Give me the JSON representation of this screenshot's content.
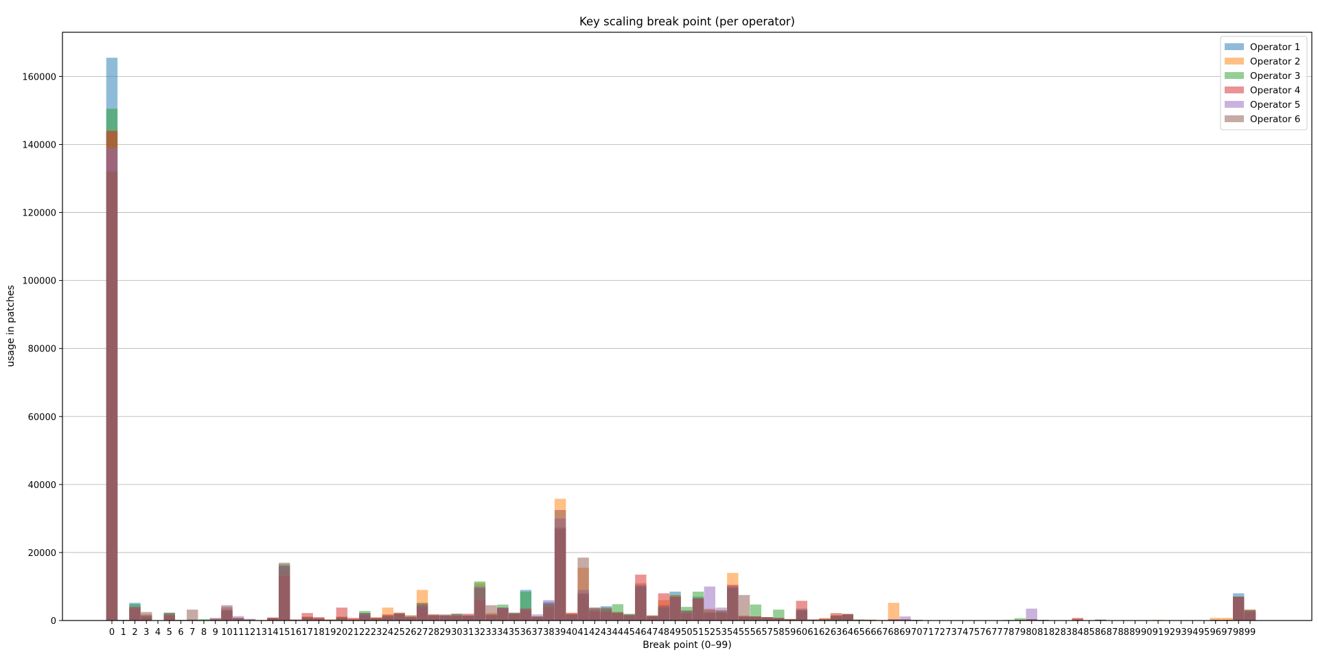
{
  "chart_data": {
    "type": "bar",
    "title": "Key scaling break point (per operator)",
    "xlabel": "Break point (0–99)",
    "ylabel": "usage in patches",
    "x": [
      0,
      1,
      2,
      3,
      4,
      5,
      6,
      7,
      8,
      9,
      10,
      11,
      12,
      13,
      14,
      15,
      16,
      17,
      18,
      19,
      20,
      21,
      22,
      23,
      24,
      25,
      26,
      27,
      28,
      29,
      30,
      31,
      32,
      33,
      34,
      35,
      36,
      37,
      38,
      39,
      40,
      41,
      42,
      43,
      44,
      45,
      46,
      47,
      48,
      49,
      50,
      51,
      52,
      53,
      54,
      55,
      56,
      57,
      58,
      59,
      60,
      61,
      62,
      63,
      64,
      65,
      66,
      67,
      68,
      69,
      70,
      71,
      72,
      73,
      74,
      75,
      76,
      77,
      78,
      79,
      80,
      81,
      82,
      83,
      84,
      85,
      86,
      87,
      88,
      89,
      90,
      91,
      92,
      93,
      94,
      95,
      96,
      97,
      98,
      99
    ],
    "ylim": [
      0,
      173000
    ],
    "yticks": [
      0,
      20000,
      40000,
      60000,
      80000,
      100000,
      120000,
      140000,
      160000
    ],
    "grid": "y",
    "legend_position": "top-right",
    "bar_opacity": 0.5,
    "series": [
      {
        "name": "Operator 1",
        "color": "#1f77b4",
        "values": [
          165500,
          200,
          5200,
          1500,
          100,
          2000,
          200,
          300,
          200,
          300,
          3000,
          600,
          300,
          100,
          600,
          16000,
          200,
          900,
          500,
          200,
          900,
          200,
          2200,
          500,
          1200,
          1800,
          1000,
          4500,
          1500,
          1500,
          1500,
          1500,
          10000,
          1500,
          3800,
          2000,
          9000,
          1200,
          5500,
          27500,
          1800,
          8000,
          3000,
          4200,
          2200,
          1600,
          10500,
          1200,
          4000,
          8500,
          2800,
          7000,
          2000,
          2500,
          10000,
          1200,
          1000,
          800,
          700,
          400,
          3000,
          300,
          300,
          1000,
          1500,
          200,
          200,
          100,
          200,
          300,
          200,
          100,
          100,
          100,
          100,
          100,
          100,
          100,
          100,
          200,
          400,
          200,
          100,
          100,
          300,
          100,
          200,
          100,
          100,
          100,
          100,
          100,
          100,
          100,
          100,
          100,
          200,
          200,
          8000,
          2800
        ]
      },
      {
        "name": "Operator 2",
        "color": "#ff7f0e",
        "values": [
          144000,
          100,
          3800,
          1800,
          100,
          1200,
          100,
          200,
          100,
          500,
          3500,
          800,
          200,
          200,
          800,
          15000,
          300,
          1200,
          800,
          300,
          1200,
          500,
          1500,
          1000,
          3800,
          2300,
          1500,
          9000,
          1800,
          1500,
          1200,
          1200,
          11000,
          2200,
          3500,
          2000,
          3500,
          1000,
          4500,
          35800,
          2300,
          15500,
          3500,
          3000,
          2500,
          1500,
          11000,
          1500,
          6000,
          7500,
          2500,
          6500,
          3500,
          3000,
          14000,
          1500,
          1200,
          1000,
          800,
          500,
          2500,
          200,
          800,
          1500,
          1800,
          300,
          300,
          200,
          5200,
          400,
          200,
          100,
          100,
          100,
          100,
          100,
          100,
          100,
          100,
          200,
          300,
          200,
          100,
          100,
          400,
          100,
          100,
          100,
          100,
          100,
          100,
          200,
          100,
          100,
          100,
          100,
          800,
          800,
          6000,
          3200
        ]
      },
      {
        "name": "Operator 3",
        "color": "#2ca02c",
        "values": [
          150500,
          200,
          4800,
          1200,
          100,
          2300,
          200,
          200,
          400,
          300,
          3000,
          500,
          300,
          100,
          700,
          16500,
          200,
          800,
          500,
          200,
          800,
          200,
          2800,
          600,
          1200,
          2000,
          1000,
          5000,
          1500,
          1500,
          2000,
          1400,
          11500,
          1500,
          4700,
          2300,
          8500,
          1200,
          5000,
          27000,
          1800,
          7500,
          3200,
          3500,
          4800,
          2000,
          10000,
          1300,
          3500,
          7500,
          4000,
          8500,
          2200,
          2500,
          10000,
          1200,
          4700,
          1000,
          3200,
          300,
          3000,
          200,
          400,
          1500,
          1800,
          300,
          200,
          100,
          300,
          200,
          200,
          100,
          100,
          100,
          100,
          100,
          100,
          100,
          200,
          700,
          400,
          200,
          100,
          100,
          200,
          100,
          300,
          100,
          100,
          100,
          100,
          100,
          100,
          100,
          100,
          100,
          200,
          200,
          7000,
          3000
        ]
      },
      {
        "name": "Operator 4",
        "color": "#d62728",
        "values": [
          144000,
          100,
          3500,
          1000,
          100,
          1500,
          100,
          200,
          100,
          300,
          3000,
          500,
          200,
          100,
          900,
          13000,
          300,
          2200,
          1000,
          300,
          3800,
          800,
          1500,
          800,
          1800,
          2000,
          1000,
          4000,
          1500,
          1500,
          1500,
          2000,
          6000,
          1800,
          3500,
          2000,
          3000,
          1000,
          4000,
          27000,
          2200,
          8000,
          2500,
          2500,
          2000,
          1500,
          13500,
          1200,
          8000,
          7000,
          2000,
          6500,
          2500,
          2200,
          10500,
          1200,
          1200,
          1000,
          700,
          300,
          5800,
          300,
          400,
          2200,
          1800,
          200,
          200,
          100,
          200,
          200,
          200,
          100,
          100,
          100,
          100,
          100,
          100,
          100,
          100,
          200,
          200,
          200,
          100,
          100,
          800,
          100,
          100,
          100,
          100,
          100,
          100,
          100,
          100,
          100,
          100,
          100,
          200,
          200,
          7000,
          2500
        ]
      },
      {
        "name": "Operator 5",
        "color": "#9467bd",
        "values": [
          139000,
          100,
          4000,
          1500,
          100,
          1500,
          100,
          200,
          100,
          800,
          4000,
          1300,
          500,
          100,
          600,
          16000,
          200,
          800,
          600,
          200,
          800,
          200,
          2000,
          500,
          1200,
          1800,
          1000,
          4500,
          1500,
          1500,
          1500,
          1500,
          10000,
          1500,
          3800,
          2000,
          3500,
          1800,
          6000,
          30000,
          1800,
          9000,
          3800,
          3000,
          2200,
          1600,
          10500,
          1200,
          4000,
          7000,
          2500,
          6500,
          10000,
          3800,
          10000,
          1200,
          1000,
          800,
          700,
          400,
          3000,
          200,
          300,
          1000,
          1500,
          200,
          200,
          100,
          400,
          1200,
          200,
          100,
          100,
          100,
          100,
          100,
          100,
          100,
          100,
          200,
          3500,
          200,
          100,
          100,
          300,
          100,
          200,
          100,
          100,
          100,
          100,
          100,
          100,
          100,
          100,
          100,
          200,
          200,
          6500,
          2800
        ]
      },
      {
        "name": "Operator 6",
        "color": "#8c564b",
        "values": [
          132000,
          100,
          4000,
          2500,
          100,
          2300,
          100,
          3200,
          100,
          500,
          4500,
          800,
          200,
          100,
          700,
          17000,
          200,
          1000,
          600,
          200,
          1000,
          300,
          2200,
          800,
          1500,
          2300,
          1500,
          5200,
          1800,
          1800,
          2000,
          1500,
          9500,
          4500,
          3800,
          2300,
          3500,
          1200,
          5000,
          32500,
          1800,
          18500,
          3800,
          3800,
          2500,
          1800,
          10000,
          1500,
          4500,
          7000,
          3000,
          6500,
          3200,
          3000,
          9500,
          7500,
          1200,
          1000,
          800,
          400,
          3500,
          300,
          500,
          1500,
          2000,
          200,
          200,
          100,
          300,
          300,
          200,
          100,
          100,
          100,
          100,
          100,
          100,
          100,
          100,
          200,
          400,
          200,
          100,
          100,
          300,
          100,
          200,
          100,
          100,
          100,
          100,
          100,
          100,
          100,
          100,
          100,
          200,
          200,
          7000,
          3200
        ]
      }
    ]
  }
}
